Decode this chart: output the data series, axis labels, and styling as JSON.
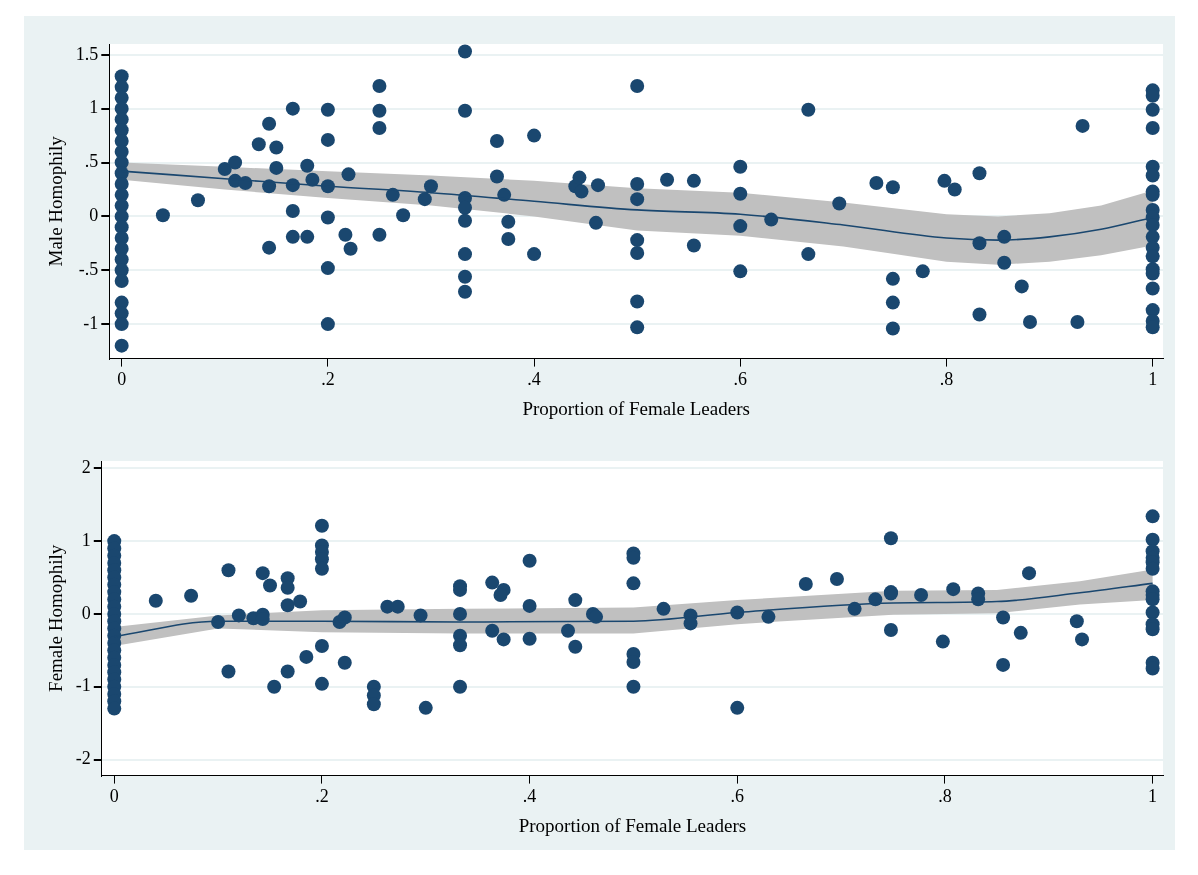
{
  "chart_data": [
    {
      "type": "scatter",
      "xlabel": "Proportion of Female Leaders",
      "ylabel": "Male Homophily",
      "xlim": [
        -0.012,
        1.01
      ],
      "ylim": [
        -1.32,
        1.6
      ],
      "xticks": [
        {
          "value": 0,
          "label": "0"
        },
        {
          "value": 0.2,
          "label": ".2"
        },
        {
          "value": 0.4,
          "label": ".4"
        },
        {
          "value": 0.6,
          "label": ".6"
        },
        {
          "value": 0.8,
          "label": ".8"
        },
        1
      ],
      "yticks": [
        -1,
        {
          "value": -0.5,
          "label": "-.5"
        },
        {
          "value": 0,
          "label": "0"
        },
        {
          "value": 0.5,
          "label": ".5"
        },
        1,
        1.5
      ],
      "grid": "y",
      "series": [
        {
          "marker": "circle",
          "color": "#1a476f",
          "x": [
            0,
            0,
            0,
            0,
            0,
            0,
            0,
            0,
            0,
            0,
            0,
            0,
            0,
            0,
            0,
            0,
            0,
            0,
            0,
            0,
            0,
            0,
            0,
            0,
            0.04,
            0.074,
            0.1,
            0.11,
            0.11,
            0.12,
            0.133,
            0.143,
            0.143,
            0.143,
            0.15,
            0.15,
            0.166,
            0.166,
            0.166,
            0.166,
            0.18,
            0.185,
            0.18,
            0.2,
            0.2,
            0.2,
            0.2,
            0.2,
            0.2,
            0.217,
            0.22,
            0.222,
            0.25,
            0.25,
            0.25,
            0.25,
            0.263,
            0.273,
            0.294,
            0.3,
            0.333,
            0.333,
            0.333,
            0.333,
            0.333,
            0.333,
            0.333,
            0.333,
            0.364,
            0.364,
            0.371,
            0.375,
            0.375,
            0.4,
            0.4,
            0.44,
            0.444,
            0.446,
            0.462,
            0.46,
            0.5,
            0.5,
            0.5,
            0.5,
            0.5,
            0.5,
            0.5,
            0.529,
            0.555,
            0.555,
            0.6,
            0.6,
            0.6,
            0.6,
            0.63,
            0.666,
            0.666,
            0.696,
            0.732,
            0.748,
            0.748,
            0.748,
            0.748,
            0.777,
            0.798,
            0.808,
            0.832,
            0.832,
            0.832,
            0.856,
            0.856,
            0.873,
            0.881,
            0.927,
            0.932,
            1,
            1,
            1,
            1,
            1,
            1,
            1,
            1,
            1,
            1,
            1,
            1,
            1,
            1,
            1,
            1,
            1,
            1,
            1,
            1
          ],
          "values": [
            1.3,
            1.2,
            1.1,
            1,
            0.9,
            0.8,
            0.7,
            0.6,
            0.5,
            0.4,
            0.3,
            0.2,
            0.1,
            0,
            -0.1,
            -0.2,
            -0.3,
            -0.4,
            -0.5,
            -0.6,
            -0.8,
            -0.9,
            -1,
            -1.2,
            0.01,
            0.15,
            0.44,
            0.5,
            0.33,
            0.31,
            0.67,
            0.86,
            0.28,
            -0.29,
            0.64,
            0.45,
            1,
            0.29,
            0.05,
            -0.19,
            0.47,
            0.34,
            -0.19,
            0.99,
            0.71,
            0.28,
            -0.01,
            -0.48,
            -1,
            -0.17,
            0.39,
            -0.3,
            1.21,
            0.98,
            0.82,
            -0.17,
            0.2,
            0.01,
            0.16,
            0.28,
            1.53,
            0.98,
            0.17,
            0.08,
            -0.04,
            -0.35,
            -0.56,
            -0.7,
            0.7,
            0.37,
            0.2,
            -0.05,
            -0.21,
            0.75,
            -0.35,
            0.28,
            0.36,
            0.23,
            0.29,
            -0.06,
            1.21,
            0.3,
            0.16,
            -0.22,
            -0.34,
            -0.79,
            -1.03,
            0.34,
            0.33,
            -0.27,
            0.46,
            0.21,
            -0.09,
            -0.51,
            -0.03,
            0.99,
            -0.35,
            0.12,
            0.31,
            0.27,
            -0.58,
            -0.8,
            -1.04,
            -0.51,
            0.33,
            0.25,
            0.4,
            -0.25,
            -0.91,
            -0.19,
            -0.43,
            -0.65,
            -0.98,
            -0.98,
            0.84,
            1.17,
            1.12,
            0.99,
            0.82,
            0.46,
            0.38,
            0.23,
            0.2,
            0.06,
            -0.01,
            -0.08,
            -0.19,
            -0.29,
            -0.37,
            -0.49,
            -0.53,
            -0.67,
            -0.87,
            -0.97,
            -1.03
          ]
        },
        {
          "type": "line",
          "marker": "none",
          "color": "#1a476f",
          "x": [
            0,
            0.1,
            0.2,
            0.3,
            0.4,
            0.5,
            0.6,
            0.7,
            0.8,
            0.85,
            0.9,
            0.95,
            1
          ],
          "values": [
            0.42,
            0.35,
            0.28,
            0.22,
            0.14,
            0.06,
            0.02,
            -0.08,
            -0.2,
            -0.22,
            -0.19,
            -0.12,
            -0.01
          ],
          "upper": [
            0.5,
            0.46,
            0.42,
            0.38,
            0.33,
            0.26,
            0.22,
            0.13,
            0.02,
            0,
            0.03,
            0.1,
            0.24
          ],
          "lower": [
            0.34,
            0.25,
            0.17,
            0.1,
            0,
            -0.13,
            -0.18,
            -0.28,
            -0.42,
            -0.45,
            -0.42,
            -0.36,
            -0.27
          ]
        }
      ]
    },
    {
      "type": "scatter",
      "xlabel": "Proportion of Female Leaders",
      "ylabel": "Female Homophily",
      "xlim": [
        -0.012,
        1.01
      ],
      "ylim": [
        -2.22,
        2.1
      ],
      "xticks": [
        {
          "value": 0,
          "label": "0"
        },
        {
          "value": 0.2,
          "label": ".2"
        },
        {
          "value": 0.4,
          "label": ".4"
        },
        {
          "value": 0.6,
          "label": ".6"
        },
        {
          "value": 0.8,
          "label": ".8"
        },
        1
      ],
      "yticks": [
        -2,
        -1,
        {
          "value": 0,
          "label": "0"
        },
        1,
        2
      ],
      "grid": "y",
      "series": [
        {
          "marker": "circle",
          "color": "#1a476f",
          "x": [
            0,
            0,
            0,
            0,
            0,
            0,
            0,
            0,
            0,
            0,
            0,
            0,
            0,
            0,
            0,
            0,
            0,
            0,
            0,
            0,
            0,
            0,
            0,
            0,
            0.04,
            0.074,
            0.1,
            0.11,
            0.11,
            0.12,
            0.134,
            0.143,
            0.143,
            0.143,
            0.15,
            0.154,
            0.167,
            0.167,
            0.167,
            0.167,
            0.179,
            0.185,
            0.2,
            0.2,
            0.2,
            0.2,
            0.2,
            0.2,
            0.2,
            0.217,
            0.222,
            0.222,
            0.25,
            0.25,
            0.25,
            0.263,
            0.273,
            0.295,
            0.3,
            0.333,
            0.333,
            0.333,
            0.333,
            0.333,
            0.333,
            0.364,
            0.375,
            0.372,
            0.364,
            0.375,
            0.4,
            0.4,
            0.4,
            0.437,
            0.444,
            0.444,
            0.461,
            0.464,
            0.5,
            0.5,
            0.5,
            0.5,
            0.5,
            0.5,
            0.529,
            0.555,
            0.555,
            0.6,
            0.6,
            0.63,
            0.666,
            0.696,
            0.713,
            0.733,
            0.748,
            0.748,
            0.748,
            0.748,
            0.777,
            0.798,
            0.808,
            0.832,
            0.832,
            0.856,
            0.856,
            0.873,
            0.881,
            0.927,
            0.932,
            1,
            1,
            1,
            1,
            1,
            1,
            1,
            1,
            1,
            1,
            1,
            1,
            1,
            1
          ],
          "values": [
            1,
            0.9,
            0.8,
            0.7,
            0.6,
            0.5,
            0.4,
            0.3,
            0.2,
            0.1,
            0,
            -0.1,
            -0.2,
            -0.3,
            -0.4,
            -0.5,
            -0.6,
            -0.7,
            -0.8,
            -0.9,
            -1,
            -1.1,
            -1.2,
            -1.3,
            0.18,
            0.25,
            -0.11,
            0.6,
            -0.79,
            -0.02,
            -0.06,
            0.56,
            -0.01,
            -0.07,
            0.39,
            -1,
            0.49,
            0.36,
            0.12,
            -0.79,
            0.17,
            -0.59,
            1.21,
            0.94,
            0.85,
            0.75,
            0.62,
            -0.44,
            -0.96,
            -0.11,
            -0.05,
            -0.67,
            -1,
            -1.12,
            -1.24,
            0.1,
            0.1,
            -0.02,
            -1.29,
            0.38,
            0.33,
            0,
            -0.3,
            -0.43,
            -1,
            0.43,
            0.33,
            0.26,
            -0.23,
            -0.35,
            0.73,
            0.11,
            -0.34,
            -0.23,
            0.19,
            -0.45,
            0,
            -0.04,
            0.83,
            0.77,
            0.42,
            -0.55,
            -0.66,
            -1,
            0.07,
            -0.02,
            -0.13,
            0.02,
            -1.29,
            -0.04,
            0.41,
            0.48,
            0.07,
            0.2,
            1.04,
            0.3,
            0.28,
            -0.22,
            0.26,
            -0.38,
            0.34,
            0.28,
            0.2,
            -0.05,
            -0.7,
            -0.26,
            0.56,
            -0.1,
            -0.35,
            1.34,
            1.02,
            0.86,
            0.77,
            0.71,
            0.62,
            0.31,
            0.26,
            0.2,
            0.02,
            -0.14,
            -0.21,
            -0.67,
            -0.75
          ]
        },
        {
          "type": "line",
          "marker": "none",
          "color": "#1a476f",
          "x": [
            0,
            0.1,
            0.2,
            0.333,
            0.5,
            0.6,
            0.75,
            0.85,
            0.93,
            1
          ],
          "values": [
            -0.31,
            -0.1,
            -0.1,
            -0.11,
            -0.1,
            0.02,
            0.15,
            0.17,
            0.29,
            0.42
          ],
          "upper": [
            -0.18,
            -0.02,
            0.05,
            0.07,
            0.09,
            0.19,
            0.32,
            0.33,
            0.45,
            0.61
          ],
          "lower": [
            -0.44,
            -0.2,
            -0.25,
            -0.27,
            -0.27,
            -0.14,
            -0.01,
            0.01,
            0.13,
            0.19
          ]
        }
      ]
    }
  ]
}
